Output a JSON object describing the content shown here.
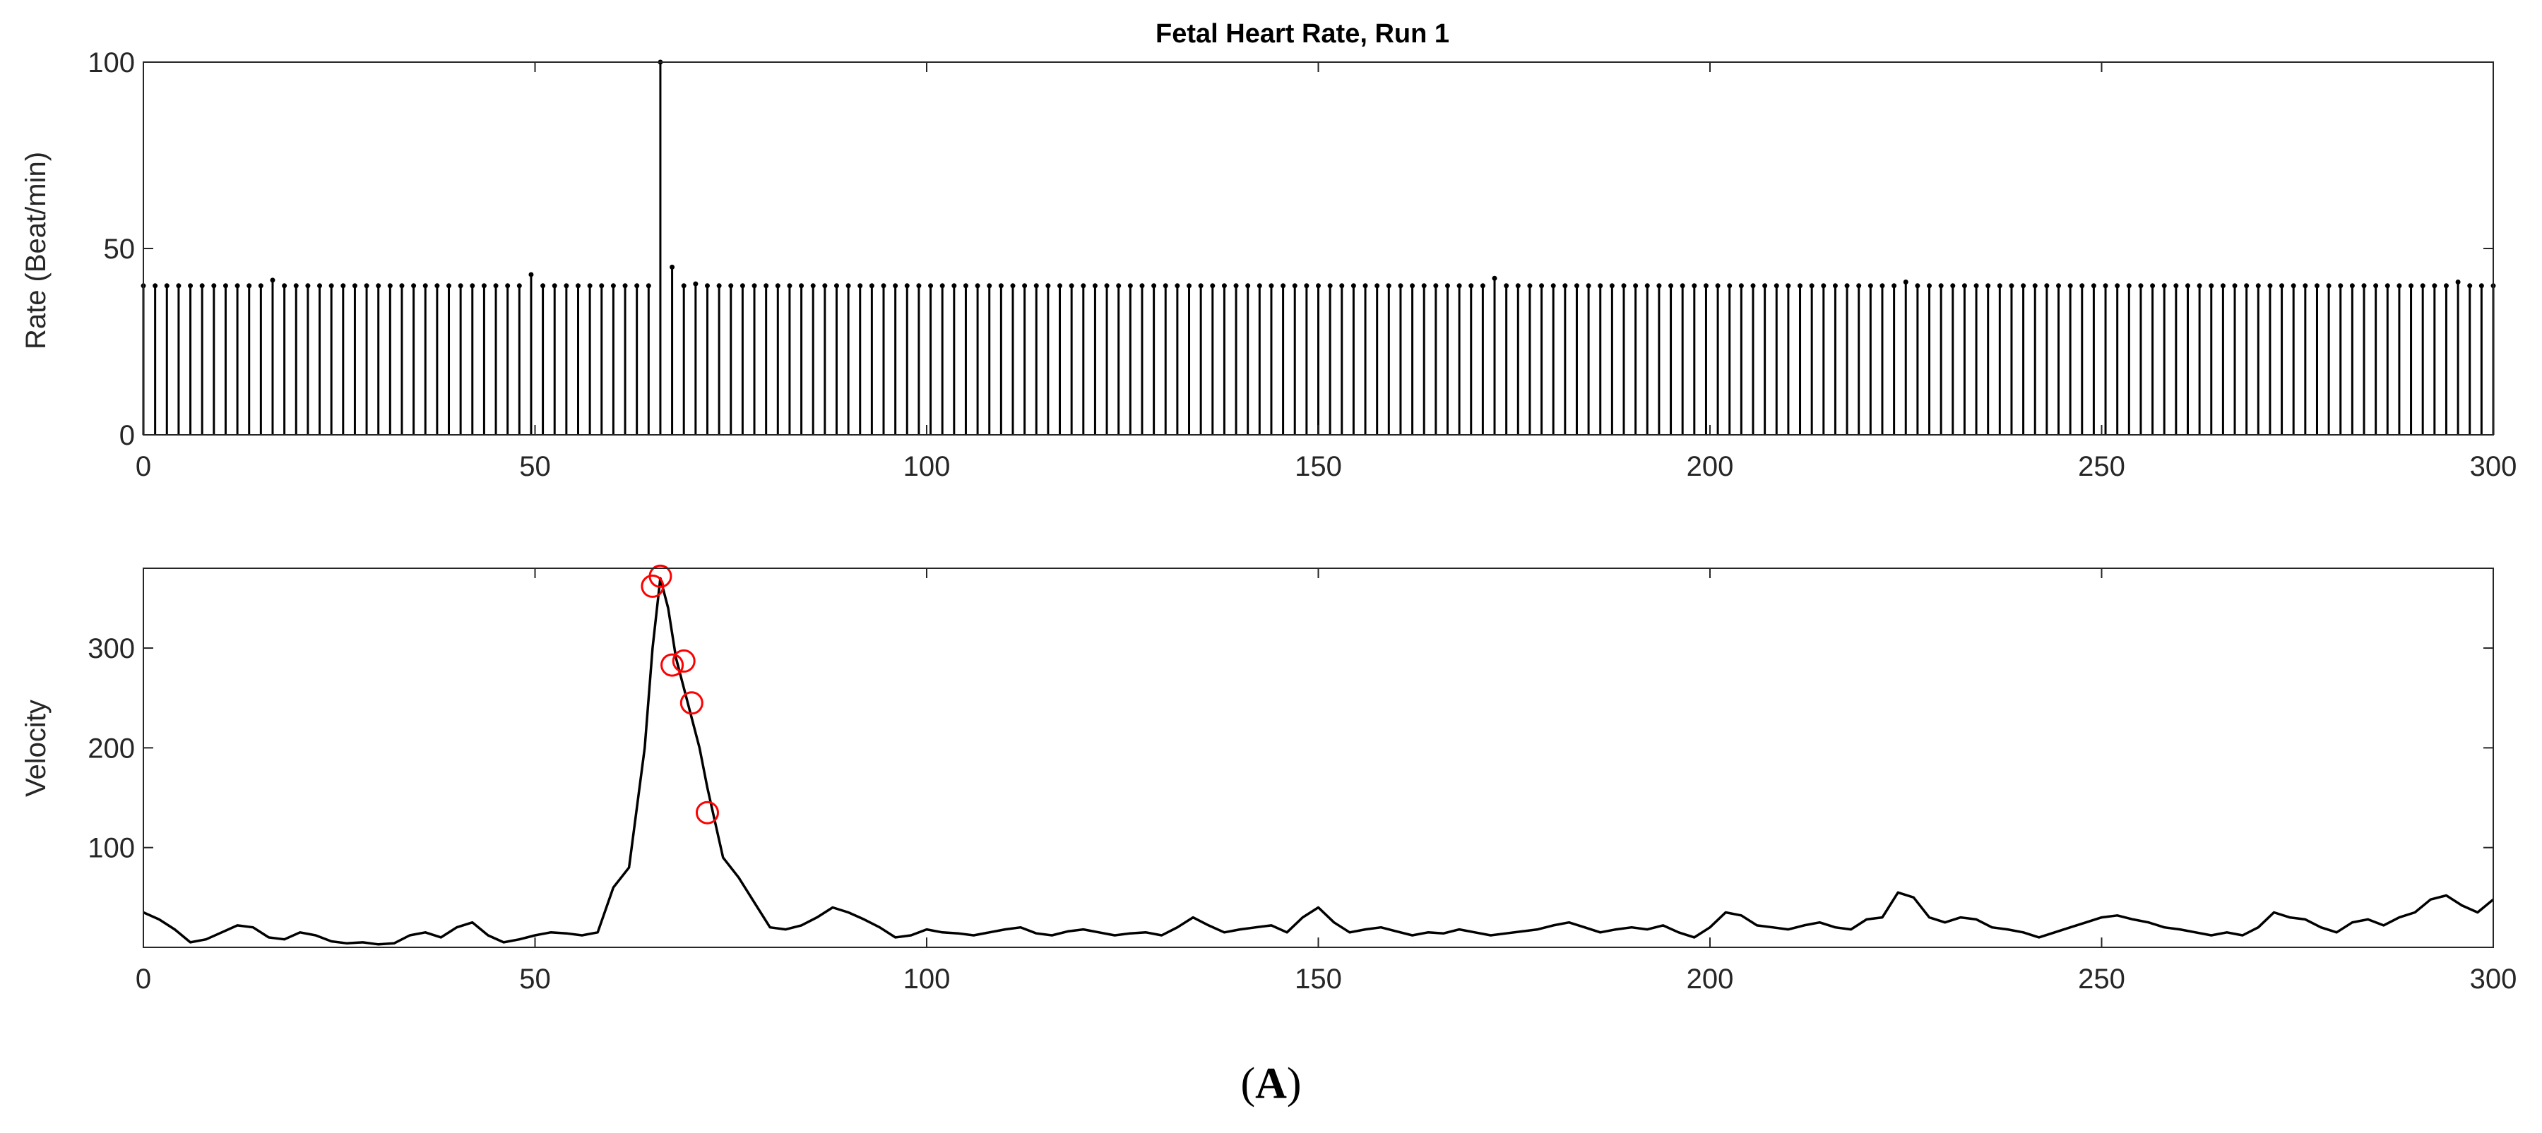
{
  "caption": {
    "open": "(",
    "letter": "A",
    "close": ")"
  },
  "charts": {
    "rate": {
      "title": "Fetal Heart Rate, Run 1",
      "ylabel": "Rate (Beat/min)"
    },
    "velocity": {
      "ylabel": "Velocity"
    }
  },
  "chart_data": [
    {
      "type": "stem",
      "title": "Fetal Heart Rate, Run 1",
      "xlabel": "",
      "ylabel": "Rate (Beat/min)",
      "xlim": [
        0,
        300
      ],
      "ylim": [
        0,
        100
      ],
      "xticks": [
        0,
        50,
        100,
        150,
        200,
        250,
        300
      ],
      "yticks": [
        0,
        50,
        100
      ],
      "grid": false,
      "x_step": 1.5,
      "x_start": 0,
      "baseline_value": 40,
      "values_overrides": {
        "66": 100,
        "67.5": 45,
        "49.5": 43,
        "172.5": 42,
        "16.5": 41.5,
        "70.5": 40.5,
        "225": 41,
        "295.5": 41
      },
      "note_color": "#000000"
    },
    {
      "type": "line",
      "title": "",
      "xlabel": "",
      "ylabel": "Velocity",
      "xlim": [
        0,
        300
      ],
      "ylim": [
        0,
        380
      ],
      "xticks": [
        0,
        50,
        100,
        150,
        200,
        250,
        300
      ],
      "yticks": [
        100,
        200,
        300
      ],
      "grid": false,
      "line_color": "#000000",
      "x": [
        0,
        2,
        4,
        6,
        8,
        10,
        12,
        14,
        16,
        18,
        20,
        22,
        24,
        26,
        28,
        30,
        32,
        34,
        36,
        38,
        40,
        42,
        44,
        46,
        48,
        50,
        52,
        54,
        56,
        58,
        60,
        62,
        64,
        65,
        66,
        67,
        68,
        69,
        70,
        71,
        72,
        74,
        76,
        78,
        80,
        82,
        84,
        86,
        88,
        90,
        92,
        94,
        96,
        98,
        100,
        102,
        104,
        106,
        108,
        110,
        112,
        114,
        116,
        118,
        120,
        122,
        124,
        126,
        128,
        130,
        132,
        134,
        136,
        138,
        140,
        142,
        144,
        146,
        148,
        150,
        152,
        154,
        156,
        158,
        160,
        162,
        164,
        166,
        168,
        170,
        172,
        174,
        176,
        178,
        180,
        182,
        184,
        186,
        188,
        190,
        192,
        194,
        196,
        198,
        200,
        202,
        204,
        206,
        208,
        210,
        212,
        214,
        216,
        218,
        220,
        222,
        224,
        226,
        228,
        230,
        232,
        234,
        236,
        238,
        240,
        242,
        244,
        246,
        248,
        250,
        252,
        254,
        256,
        258,
        260,
        262,
        264,
        266,
        268,
        270,
        272,
        274,
        276,
        278,
        280,
        282,
        284,
        286,
        288,
        290,
        292,
        294,
        296,
        298,
        300
      ],
      "y": [
        35,
        28,
        18,
        5,
        8,
        15,
        22,
        20,
        10,
        8,
        15,
        12,
        6,
        4,
        5,
        3,
        4,
        12,
        15,
        10,
        20,
        25,
        12,
        5,
        8,
        12,
        15,
        14,
        12,
        15,
        60,
        80,
        200,
        300,
        370,
        340,
        290,
        260,
        230,
        200,
        160,
        90,
        70,
        45,
        20,
        18,
        22,
        30,
        40,
        35,
        28,
        20,
        10,
        12,
        18,
        15,
        14,
        12,
        15,
        18,
        20,
        14,
        12,
        16,
        18,
        15,
        12,
        14,
        15,
        12,
        20,
        30,
        22,
        15,
        18,
        20,
        22,
        15,
        30,
        40,
        25,
        15,
        18,
        20,
        16,
        12,
        15,
        14,
        18,
        15,
        12,
        14,
        16,
        18,
        22,
        25,
        20,
        15,
        18,
        20,
        18,
        22,
        15,
        10,
        20,
        35,
        32,
        22,
        20,
        18,
        22,
        25,
        20,
        18,
        28,
        30,
        55,
        50,
        30,
        25,
        30,
        28,
        20,
        18,
        15,
        10,
        15,
        20,
        25,
        30,
        32,
        28,
        25,
        20,
        18,
        15,
        12,
        15,
        12,
        20,
        35,
        30,
        28,
        20,
        15,
        25,
        28,
        22,
        30,
        35,
        48,
        52,
        42,
        35,
        48
      ],
      "markers": {
        "color": "#ff0000",
        "shape": "circle",
        "points": [
          {
            "x": 65,
            "y": 362
          },
          {
            "x": 66,
            "y": 372
          },
          {
            "x": 67.5,
            "y": 283
          },
          {
            "x": 69,
            "y": 287
          },
          {
            "x": 70,
            "y": 245
          },
          {
            "x": 72,
            "y": 135
          }
        ]
      }
    }
  ]
}
